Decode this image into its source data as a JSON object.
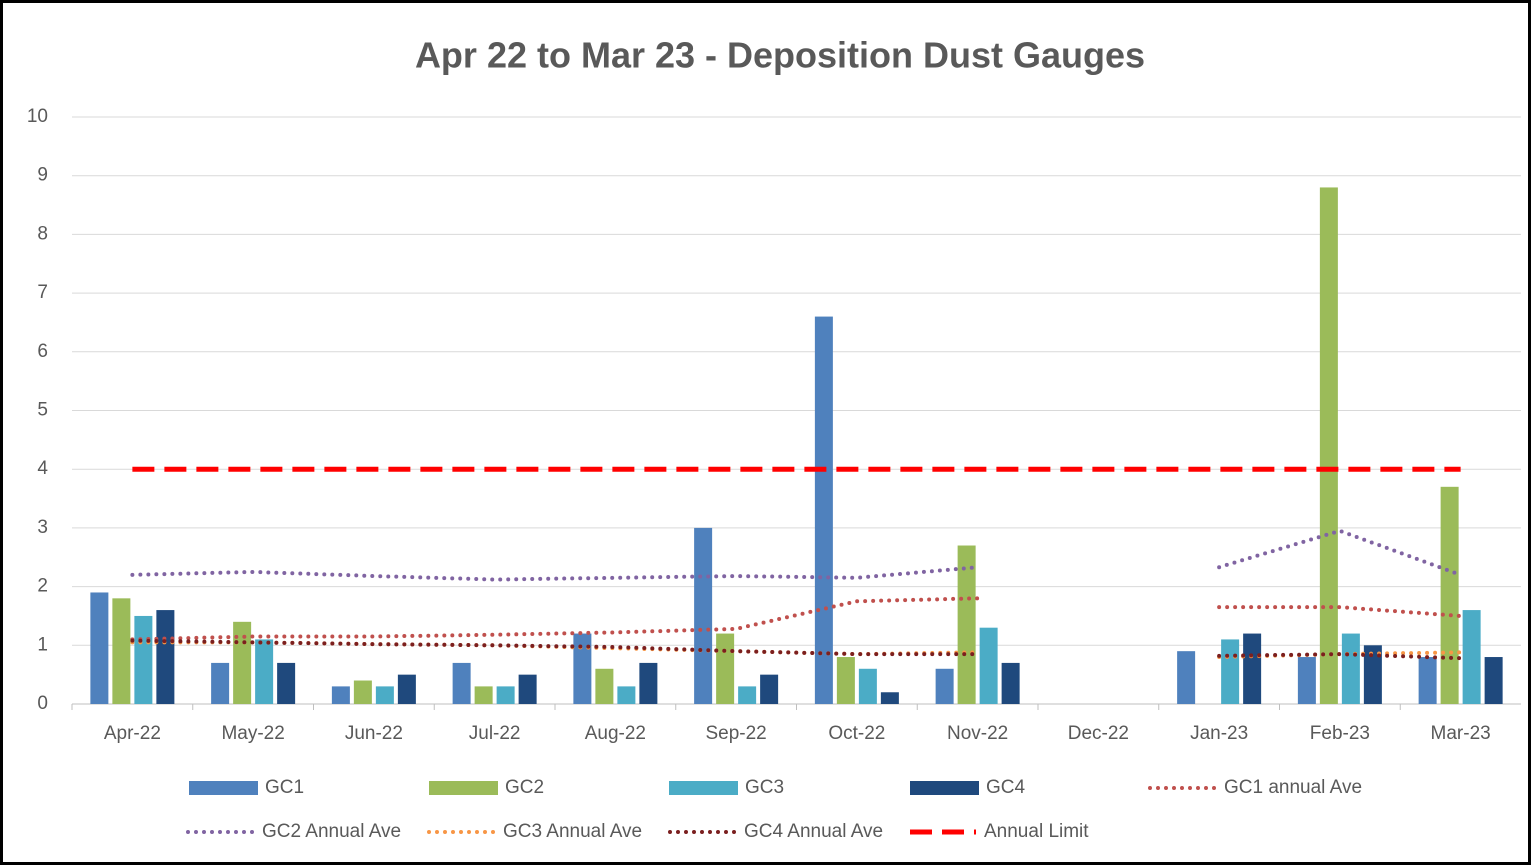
{
  "chart_data": {
    "type": "bar",
    "title": "Apr 22 to Mar 23 - Deposition Dust Gauges",
    "categories": [
      "Apr-22",
      "May-22",
      "Jun-22",
      "Jul-22",
      "Aug-22",
      "Sep-22",
      "Oct-22",
      "Nov-22",
      "Dec-22",
      "Jan-23",
      "Feb-23",
      "Mar-23"
    ],
    "series": [
      {
        "name": "GC1",
        "kind": "bar",
        "color": "#4f81bd",
        "values": [
          1.9,
          0.7,
          0.3,
          0.7,
          1.2,
          3.0,
          6.6,
          0.6,
          null,
          0.9,
          0.8,
          0.8
        ]
      },
      {
        "name": "GC2",
        "kind": "bar",
        "color": "#9bbb59",
        "values": [
          1.8,
          1.4,
          0.4,
          0.3,
          0.6,
          1.2,
          0.8,
          2.7,
          null,
          null,
          8.8,
          3.7
        ]
      },
      {
        "name": "GC3",
        "kind": "bar",
        "color": "#4bacc6",
        "values": [
          1.5,
          1.1,
          0.3,
          0.3,
          0.3,
          0.3,
          0.6,
          1.3,
          null,
          1.1,
          1.2,
          1.6
        ]
      },
      {
        "name": "GC4",
        "kind": "bar",
        "color": "#1f497d",
        "values": [
          1.6,
          0.7,
          0.5,
          0.5,
          0.7,
          0.5,
          0.2,
          0.7,
          null,
          1.2,
          1.0,
          0.8
        ]
      },
      {
        "name": "GC1 annual Ave",
        "kind": "line",
        "dash": "dot",
        "color": "#c0504d",
        "values": [
          1.1,
          1.15,
          1.15,
          1.18,
          1.22,
          1.28,
          1.75,
          1.8,
          null,
          1.65,
          1.65,
          1.5
        ]
      },
      {
        "name": "GC2 Annual Ave",
        "kind": "line",
        "dash": "dot",
        "color": "#8064a2",
        "values": [
          2.2,
          2.25,
          2.18,
          2.12,
          2.15,
          2.18,
          2.15,
          2.33,
          null,
          2.33,
          2.95,
          2.2
        ]
      },
      {
        "name": "GC3 Annual Ave",
        "kind": "line",
        "dash": "dot",
        "color": "#f79646",
        "values": [
          1.05,
          1.05,
          1.02,
          1.0,
          0.95,
          0.9,
          0.85,
          0.88,
          null,
          0.8,
          0.85,
          0.88
        ]
      },
      {
        "name": "GC4 Annual Ave",
        "kind": "line",
        "dash": "dot",
        "color": "#7b1f1f",
        "values": [
          1.08,
          1.05,
          1.02,
          1.0,
          0.97,
          0.9,
          0.85,
          0.85,
          null,
          0.82,
          0.85,
          0.78
        ]
      },
      {
        "name": "Annual Limit",
        "kind": "line",
        "dash": "dash",
        "color": "#ff0000",
        "values": [
          4,
          4,
          4,
          4,
          4,
          4,
          4,
          4,
          4,
          4,
          4,
          4
        ]
      }
    ],
    "ylim": [
      0,
      10
    ],
    "yticks": [
      0,
      1,
      2,
      3,
      4,
      5,
      6,
      7,
      8,
      9,
      10
    ],
    "grid": true,
    "legend": "bottom"
  }
}
